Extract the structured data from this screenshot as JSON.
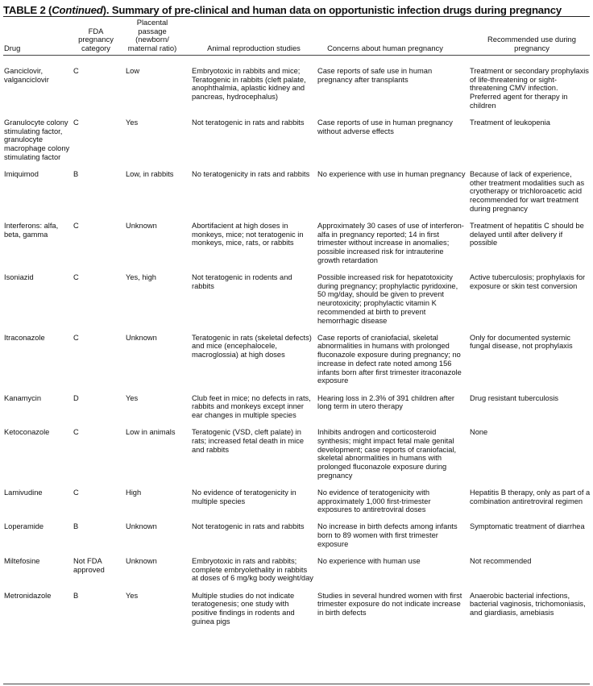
{
  "title": {
    "prefix": "TABLE 2 (",
    "italic": "Continued",
    "suffix": "). Summary of pre-clinical and human data on opportunistic infection drugs during pregnancy"
  },
  "headers": [
    "Drug",
    "FDA pregnancy category",
    "Placental passage (newborn/ maternal ratio)",
    "Animal reproduction studies",
    "Concerns about human pregnancy",
    "Recommended use during pregnancy"
  ],
  "rows": [
    [
      "Ganciclovir, valganciclovir",
      "C",
      "Low",
      "Embryotoxic in rabbits and mice; Teratogenic in rabbits (cleft palate, anophthalmia, aplastic kidney and pancreas, hydrocephalus)",
      "Case reports of safe use in human pregnancy after transplants",
      "Treatment or secondary prophylaxis of life-threatening or sight-threatening CMV infection. Preferred agent for therapy in children"
    ],
    [
      "Granulocyte colony stimulating factor, granulocyte macrophage colony stimulating factor",
      "C",
      "Yes",
      "Not teratogenic in rats and rabbits",
      "Case reports of use in human pregnancy without adverse effects",
      "Treatment of leukopenia"
    ],
    [
      "Imiquimod",
      "B",
      "Low, in rabbits",
      "No teratogenicity in rats and rabbits",
      "No experience with use in human pregnancy",
      "Because of lack of experience, other treatment modalities such as cryotherapy or trichloroacetic acid recommended for wart treatment during pregnancy"
    ],
    [
      "Interferons: alfa, beta, gamma",
      "C",
      "Unknown",
      "Abortifacient at high doses in monkeys, mice; not teratogenic in monkeys, mice, rats, or rabbits",
      "Approximately 30 cases of use of interferon-alfa in pregnancy reported; 14 in first trimester without increase in anomalies; possible increased risk for intrauterine growth retardation",
      "Treatment of hepatitis C should be delayed until after delivery if possible"
    ],
    [
      "Isoniazid",
      "C",
      "Yes, high",
      "Not teratogenic in rodents and rabbits",
      "Possible increased risk for hepatotoxicity during pregnancy; prophylactic pyridoxine, 50 mg/day, should be given to prevent neurotoxicity; prophylactic vitamin K recommended at birth to prevent hemorrhagic disease",
      "Active tuberculosis; prophylaxis for exposure or skin test conversion"
    ],
    [
      "Itraconazole",
      "C",
      "Unknown",
      "Teratogenic in rats (skeletal defects) and mice (encephalocele, macroglossia) at high doses",
      "Case reports of craniofacial, skeletal abnormalities in humans with prolonged fluconazole exposure during pregnancy; no increase in defect rate noted among 156 infants born after first trimester itraconazole exposure",
      "Only for documented systemic fungal disease, not prophylaxis"
    ],
    [
      "Kanamycin",
      "D",
      "Yes",
      "Club feet in mice; no defects in rats, rabbits and monkeys except inner ear changes in multiple species",
      "Hearing loss in 2.3% of 391 children after long term in utero therapy",
      "Drug resistant tuberculosis"
    ],
    [
      "Ketoconazole",
      "C",
      "Low in animals",
      "Teratogenic (VSD, cleft palate) in rats; increased fetal death in mice and rabbits",
      "Inhibits androgen and corticosteroid synthesis; might impact fetal male genital development; case reports of craniofacial, skeletal abnormalities in humans with prolonged fluconazole exposure during pregnancy",
      "None"
    ],
    [
      "Lamivudine",
      "C",
      "High",
      "No evidence of teratogenicity in multiple species",
      "No evidence of teratogenicity with approximately 1,000 first-trimester exposures to antiretroviral doses",
      "Hepatitis B therapy, only as part of a combination antiretroviral regimen"
    ],
    [
      "Loperamide",
      "B",
      "Unknown",
      "Not teratogenic in rats and rabbits",
      "No increase in birth defects among infants born to 89 women with first trimester exposure",
      "Symptomatic treatment of diarrhea"
    ],
    [
      "Miltefosine",
      "Not FDA approved",
      "Unknown",
      "Embryotoxic in rats and rabbits; complete embryolethality in rabbits at doses of 6 mg/kg body weight/day",
      "No experience with human use",
      "Not recommended"
    ],
    [
      "Metronidazole",
      "B",
      "Yes",
      "Multiple studies do not indicate teratogenesis; one study with positive findings in rodents and guinea pigs",
      "Studies in several hundred women with first trimester exposure do not indicate increase in birth defects",
      "Anaerobic bacterial infections, bacterial vaginosis, trichomoniasis, and giardiasis, amebiasis"
    ]
  ]
}
